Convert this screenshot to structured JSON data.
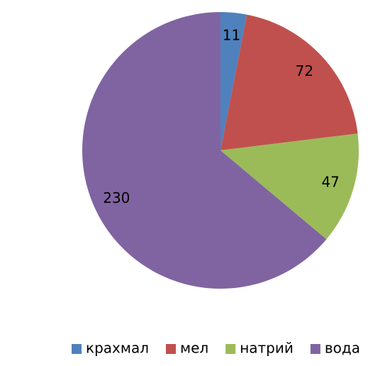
{
  "chart_data": {
    "type": "pie",
    "categories": [
      "крахмал",
      "мел",
      "натрий",
      "вода"
    ],
    "values": [
      11,
      72,
      47,
      230
    ],
    "colors": [
      "#4f81bd",
      "#c0504d",
      "#9bbb59",
      "#8064a2"
    ],
    "legend": "bottom"
  }
}
